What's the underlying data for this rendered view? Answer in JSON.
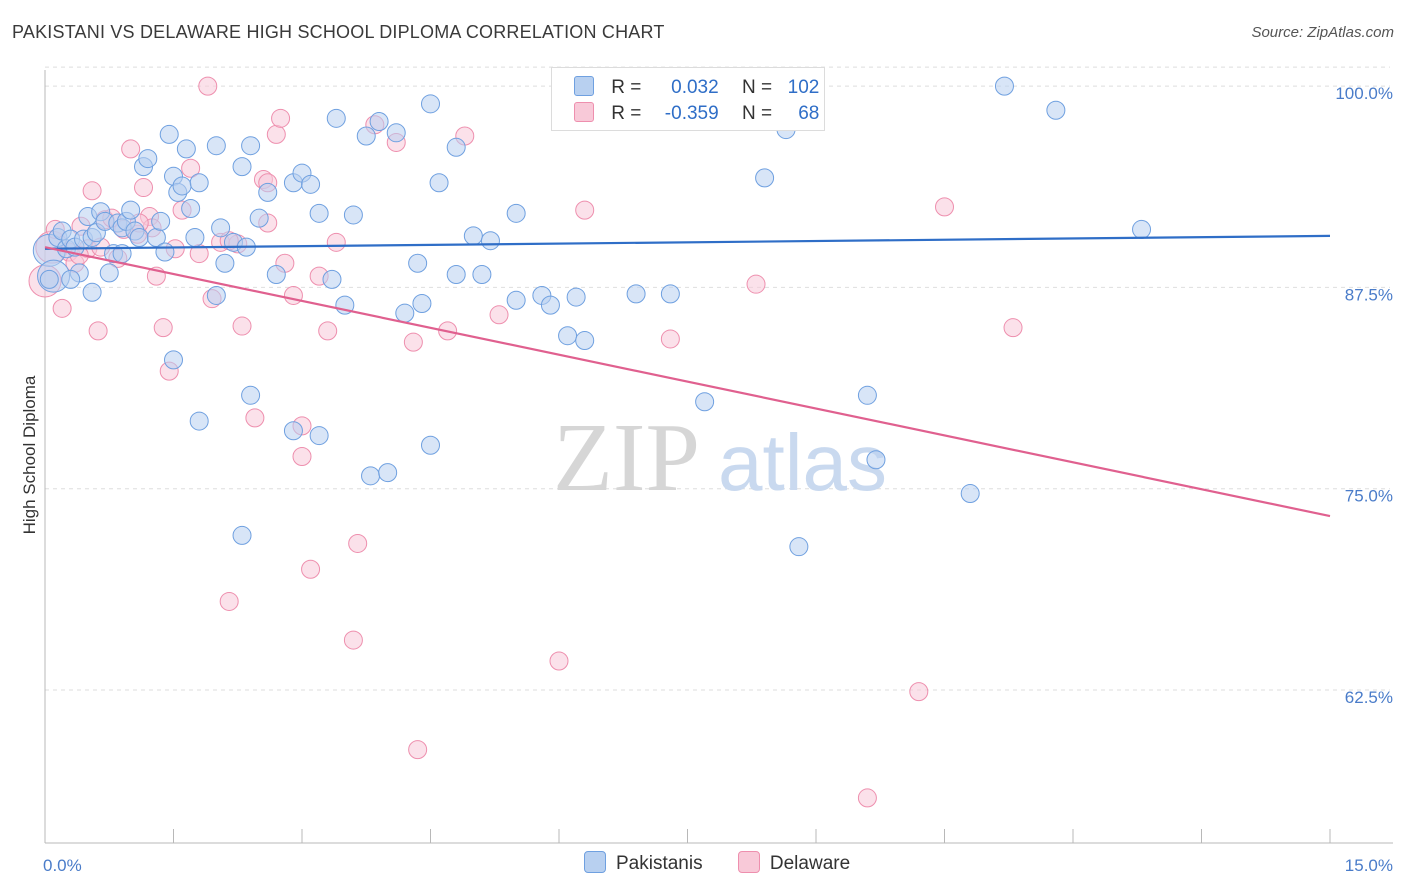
{
  "header": {
    "title": "PAKISTANI VS DELAWARE HIGH SCHOOL DIPLOMA CORRELATION CHART",
    "source": "Source: ZipAtlas.com"
  },
  "legend": {
    "row1": {
      "r_label": "R =",
      "r_value": "0.032",
      "n_label": "N =",
      "n_value": "102"
    },
    "row2": {
      "r_label": "R =",
      "r_value": "-0.359",
      "n_label": "N =",
      "n_value": "68"
    }
  },
  "watermark": {
    "zip": "ZIP",
    "atlas": "atlas"
  },
  "colors": {
    "pakistanis": "#6fa0e0",
    "pakistanis_fill": "#b8d0f0",
    "delaware": "#ee8fae",
    "delaware_fill": "#f8c9d8",
    "blue_line": "#2f6ec7",
    "pink_line": "#e0608f"
  },
  "chart_data": {
    "type": "scatter",
    "title": "PAKISTANI VS DELAWARE HIGH SCHOOL DIPLOMA CORRELATION CHART",
    "xlabel": "",
    "ylabel": "High School Diploma",
    "xlim": [
      0,
      15
    ],
    "ylim": [
      53,
      101
    ],
    "x_ticks": [
      "0.0%",
      "15.0%"
    ],
    "y_ticks": [
      {
        "value": 100,
        "label": "100.0%"
      },
      {
        "value": 87.5,
        "label": "87.5%"
      },
      {
        "value": 75,
        "label": "75.0%"
      },
      {
        "value": 62.5,
        "label": "62.5%"
      }
    ],
    "grid": true,
    "legend_position": "top-center",
    "series": [
      {
        "name": "Pakistanis",
        "trend": {
          "x": [
            0,
            15
          ],
          "y": [
            89.9,
            90.7
          ]
        },
        "points": [
          [
            0.05,
            89.8
          ],
          [
            0.1,
            88.2
          ],
          [
            0.15,
            90.6
          ],
          [
            0.2,
            91.0
          ],
          [
            0.25,
            89.9
          ],
          [
            0.3,
            90.5
          ],
          [
            0.35,
            90.0
          ],
          [
            0.4,
            88.4
          ],
          [
            0.45,
            90.5
          ],
          [
            0.5,
            91.9
          ],
          [
            0.55,
            90.6
          ],
          [
            0.6,
            90.9
          ],
          [
            0.65,
            92.2
          ],
          [
            0.7,
            91.6
          ],
          [
            0.75,
            88.4
          ],
          [
            0.8,
            89.6
          ],
          [
            0.85,
            91.5
          ],
          [
            0.9,
            91.2
          ],
          [
            0.95,
            91.6
          ],
          [
            1.0,
            92.3
          ],
          [
            1.05,
            91.0
          ],
          [
            1.1,
            90.6
          ],
          [
            1.15,
            95.0
          ],
          [
            1.2,
            95.5
          ],
          [
            1.3,
            90.6
          ],
          [
            1.35,
            91.6
          ],
          [
            1.4,
            89.7
          ],
          [
            1.45,
            97.0
          ],
          [
            1.5,
            94.4
          ],
          [
            1.55,
            93.4
          ],
          [
            1.6,
            93.8
          ],
          [
            1.65,
            96.1
          ],
          [
            1.7,
            92.4
          ],
          [
            1.75,
            90.6
          ],
          [
            1.8,
            94.0
          ],
          [
            2.0,
            96.3
          ],
          [
            2.05,
            91.2
          ],
          [
            2.1,
            89.0
          ],
          [
            2.2,
            90.3
          ],
          [
            2.3,
            95.0
          ],
          [
            2.35,
            90.0
          ],
          [
            2.4,
            96.3
          ],
          [
            2.5,
            91.8
          ],
          [
            2.6,
            93.4
          ],
          [
            2.7,
            88.3
          ],
          [
            2.9,
            94.0
          ],
          [
            3.0,
            94.6
          ],
          [
            3.1,
            93.9
          ],
          [
            3.2,
            92.1
          ],
          [
            3.35,
            88.0
          ],
          [
            3.4,
            98.0
          ],
          [
            3.6,
            92.0
          ],
          [
            3.75,
            96.9
          ],
          [
            3.9,
            97.8
          ],
          [
            4.1,
            97.1
          ],
          [
            4.35,
            89.0
          ],
          [
            4.5,
            98.9
          ],
          [
            4.8,
            96.2
          ],
          [
            5.0,
            90.7
          ],
          [
            5.5,
            92.1
          ],
          [
            5.8,
            87.0
          ],
          [
            6.2,
            86.9
          ],
          [
            7.5,
            100.0
          ],
          [
            7.6,
            99.5
          ],
          [
            8.4,
            94.3
          ],
          [
            8.65,
            97.3
          ],
          [
            11.2,
            100.0
          ],
          [
            11.8,
            98.5
          ],
          [
            12.8,
            91.1
          ],
          [
            0.05,
            88.0
          ],
          [
            0.3,
            88.0
          ],
          [
            0.55,
            87.2
          ],
          [
            0.9,
            89.6
          ],
          [
            1.5,
            83.0
          ],
          [
            1.8,
            79.2
          ],
          [
            2.0,
            87.0
          ],
          [
            2.4,
            80.8
          ],
          [
            2.9,
            78.6
          ],
          [
            3.2,
            78.3
          ],
          [
            3.5,
            86.4
          ],
          [
            3.8,
            75.8
          ],
          [
            4.0,
            76.0
          ],
          [
            4.2,
            85.9
          ],
          [
            4.4,
            86.5
          ],
          [
            4.5,
            77.7
          ],
          [
            4.8,
            88.3
          ],
          [
            5.1,
            88.3
          ],
          [
            5.5,
            86.7
          ],
          [
            5.9,
            86.4
          ],
          [
            6.1,
            84.5
          ],
          [
            6.3,
            84.2
          ],
          [
            7.3,
            87.1
          ],
          [
            7.7,
            80.4
          ],
          [
            8.8,
            71.4
          ],
          [
            9.6,
            80.8
          ],
          [
            9.7,
            76.8
          ],
          [
            10.8,
            74.7
          ],
          [
            2.3,
            72.1
          ],
          [
            6.9,
            87.1
          ],
          [
            5.2,
            90.4
          ],
          [
            4.6,
            94.0
          ]
        ]
      },
      {
        "name": "Delaware",
        "trend": {
          "x": [
            0,
            15
          ],
          "y": [
            90.0,
            73.3
          ]
        },
        "points": [
          [
            0.0,
            87.9
          ],
          [
            0.08,
            90.0
          ],
          [
            0.12,
            91.1
          ],
          [
            0.2,
            86.2
          ],
          [
            0.28,
            89.7
          ],
          [
            0.35,
            89.0
          ],
          [
            0.42,
            91.3
          ],
          [
            0.5,
            89.9
          ],
          [
            0.55,
            93.5
          ],
          [
            0.62,
            84.8
          ],
          [
            0.7,
            91.7
          ],
          [
            0.78,
            91.8
          ],
          [
            0.85,
            89.3
          ],
          [
            0.92,
            91.1
          ],
          [
            1.0,
            96.1
          ],
          [
            1.08,
            90.8
          ],
          [
            1.15,
            93.7
          ],
          [
            1.22,
            91.9
          ],
          [
            1.3,
            88.2
          ],
          [
            1.38,
            85.0
          ],
          [
            1.45,
            82.3
          ],
          [
            1.52,
            89.9
          ],
          [
            1.6,
            92.3
          ],
          [
            1.7,
            94.9
          ],
          [
            1.8,
            89.6
          ],
          [
            1.9,
            100.0
          ],
          [
            1.95,
            86.8
          ],
          [
            2.05,
            90.3
          ],
          [
            2.15,
            68.0
          ],
          [
            2.25,
            90.2
          ],
          [
            2.3,
            85.1
          ],
          [
            2.45,
            79.4
          ],
          [
            2.55,
            94.2
          ],
          [
            2.6,
            91.5
          ],
          [
            2.7,
            97.0
          ],
          [
            2.75,
            98.0
          ],
          [
            2.8,
            89.0
          ],
          [
            2.9,
            87.0
          ],
          [
            3.0,
            77.0
          ],
          [
            3.1,
            70.0
          ],
          [
            3.2,
            88.2
          ],
          [
            3.3,
            84.8
          ],
          [
            3.4,
            90.3
          ],
          [
            3.6,
            65.6
          ],
          [
            3.65,
            71.6
          ],
          [
            3.85,
            97.6
          ],
          [
            4.3,
            84.1
          ],
          [
            4.35,
            58.8
          ],
          [
            4.7,
            84.8
          ],
          [
            4.9,
            96.9
          ],
          [
            5.3,
            85.8
          ],
          [
            6.0,
            64.3
          ],
          [
            6.3,
            92.3
          ],
          [
            7.3,
            84.3
          ],
          [
            8.2,
            100.0
          ],
          [
            8.3,
            87.7
          ],
          [
            9.6,
            55.8
          ],
          [
            10.2,
            62.4
          ],
          [
            10.5,
            92.5
          ],
          [
            11.3,
            85.0
          ],
          [
            1.25,
            91.2
          ],
          [
            0.65,
            90.0
          ],
          [
            2.15,
            90.4
          ],
          [
            3.0,
            78.9
          ],
          [
            0.4,
            89.5
          ],
          [
            1.1,
            91.5
          ],
          [
            2.6,
            94.0
          ],
          [
            4.1,
            96.5
          ]
        ]
      }
    ]
  },
  "bottom_legend": {
    "item1": "Pakistanis",
    "item2": "Delaware"
  }
}
